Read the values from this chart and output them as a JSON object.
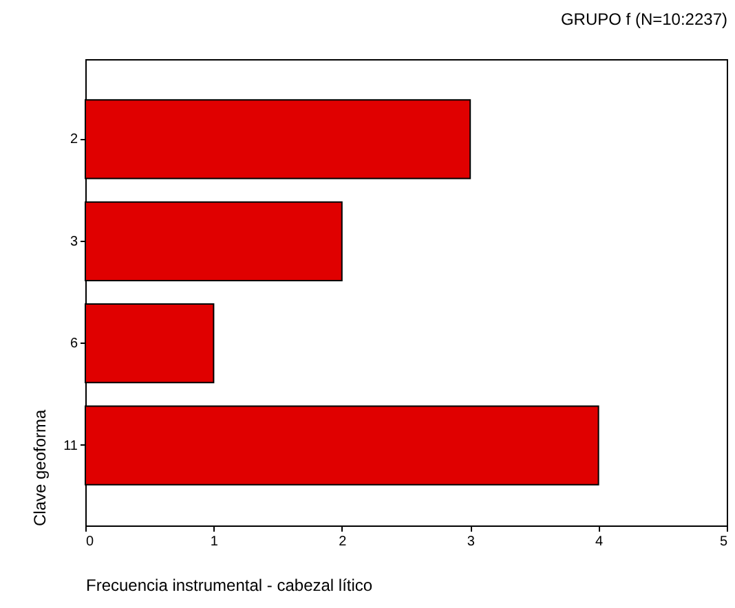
{
  "chart_data": {
    "type": "bar",
    "orientation": "horizontal",
    "title": "GRUPO f   (N=10:2237)",
    "xlabel": "Frecuencia instrumental - cabezal lítico",
    "ylabel": "Clave geoforma",
    "categories": [
      "2",
      "3",
      "6",
      "11"
    ],
    "values": [
      3,
      2,
      1,
      4
    ],
    "color": "#e00000",
    "xlim": [
      0,
      5
    ],
    "xticks": [
      0,
      1,
      2,
      3,
      4,
      5
    ],
    "grid": false
  }
}
